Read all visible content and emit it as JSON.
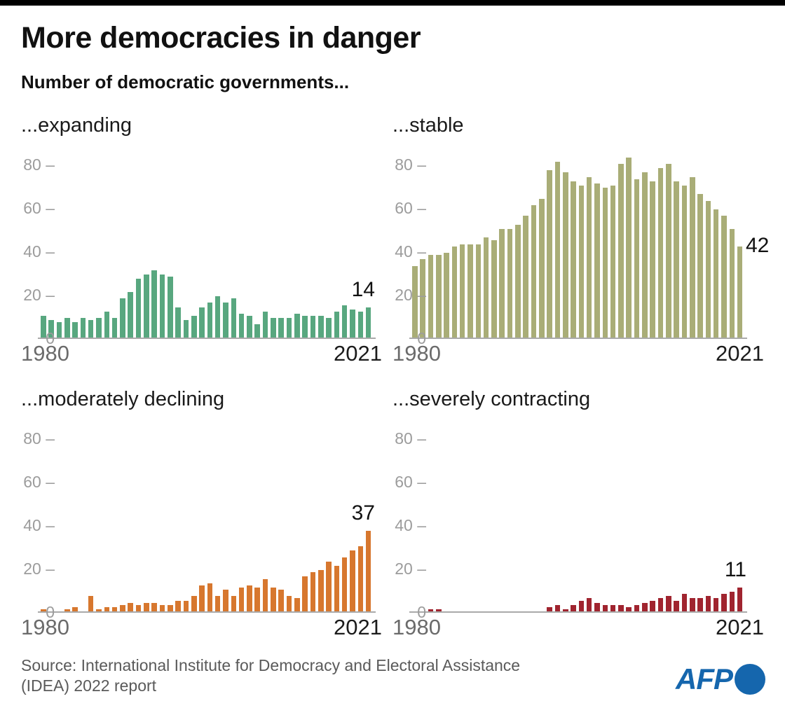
{
  "page": {
    "title": "More democracies in danger",
    "subtitle": "Number of democratic governments...",
    "source_line1": "Source: International Institute for Democracy and Electoral Assistance",
    "source_line2": "(IDEA) 2022 report",
    "logo_text": "AFP"
  },
  "colors": {
    "top_strip": "#000000",
    "expanding_green": "#58A77F",
    "stable_olive": "#A9AD77",
    "declining_orange": "#D7772E",
    "contracting_red": "#A0242F",
    "axis_line": "#aaaaaa",
    "tick_text": "#9c9c9c",
    "afp_blue": "#1566AD"
  },
  "chart_data": [
    {
      "type": "bar",
      "title": "...expanding",
      "x_years": {
        "start": 1980,
        "end": 2021,
        "step": 1
      },
      "x_start_label": "1980",
      "x_end_label": "2021",
      "ylim": [
        0,
        80
      ],
      "yticks": [
        0,
        20,
        40,
        60,
        80
      ],
      "grid": false,
      "color": "#58A77F",
      "end_value_label": "14",
      "end_label_placement": "above",
      "values": [
        10,
        8,
        7,
        9,
        7,
        9,
        8,
        9,
        12,
        9,
        18,
        21,
        27,
        29,
        31,
        29,
        28,
        14,
        8,
        10,
        14,
        16,
        19,
        16,
        18,
        11,
        10,
        6,
        12,
        9,
        9,
        9,
        11,
        10,
        10,
        10,
        9,
        12,
        15,
        13,
        12,
        14
      ]
    },
    {
      "type": "bar",
      "title": "...stable",
      "x_years": {
        "start": 1980,
        "end": 2021,
        "step": 1
      },
      "x_start_label": "1980",
      "x_end_label": "2021",
      "ylim": [
        0,
        80
      ],
      "yticks": [
        0,
        20,
        40,
        60,
        80
      ],
      "grid": false,
      "color": "#A9AD77",
      "end_value_label": "42",
      "end_label_placement": "right",
      "values": [
        33,
        36,
        38,
        38,
        39,
        42,
        43,
        43,
        43,
        46,
        45,
        50,
        50,
        52,
        56,
        61,
        64,
        77,
        81,
        76,
        72,
        70,
        74,
        71,
        69,
        70,
        80,
        83,
        73,
        76,
        72,
        78,
        80,
        72,
        70,
        74,
        66,
        63,
        59,
        56,
        50,
        42
      ]
    },
    {
      "type": "bar",
      "title": "...moderately declining",
      "x_years": {
        "start": 1980,
        "end": 2021,
        "step": 1
      },
      "x_start_label": "1980",
      "x_end_label": "2021",
      "ylim": [
        0,
        80
      ],
      "yticks": [
        0,
        20,
        40,
        60,
        80
      ],
      "grid": false,
      "color": "#D7772E",
      "end_value_label": "37",
      "end_label_placement": "above",
      "values": [
        1,
        0,
        0,
        1,
        2,
        0,
        7,
        1,
        2,
        2,
        3,
        4,
        3,
        4,
        4,
        3,
        3,
        5,
        5,
        7,
        12,
        13,
        7,
        10,
        7,
        11,
        12,
        11,
        15,
        11,
        10,
        7,
        6,
        16,
        18,
        19,
        23,
        21,
        25,
        28,
        30,
        37
      ]
    },
    {
      "type": "bar",
      "title": "...severely contracting",
      "x_years": {
        "start": 1980,
        "end": 2021,
        "step": 1
      },
      "x_start_label": "1980",
      "x_end_label": "2021",
      "ylim": [
        0,
        80
      ],
      "yticks": [
        0,
        20,
        40,
        60,
        80
      ],
      "grid": false,
      "color": "#A0242F",
      "end_value_label": "11",
      "end_label_placement": "above",
      "values": [
        0,
        0,
        1,
        1,
        0,
        0,
        0,
        0,
        0,
        0,
        0,
        0,
        0,
        0,
        0,
        0,
        0,
        2,
        3,
        1,
        3,
        5,
        6,
        4,
        3,
        3,
        3,
        2,
        3,
        4,
        5,
        6,
        7,
        5,
        8,
        6,
        6,
        7,
        6,
        8,
        9,
        11
      ]
    }
  ]
}
